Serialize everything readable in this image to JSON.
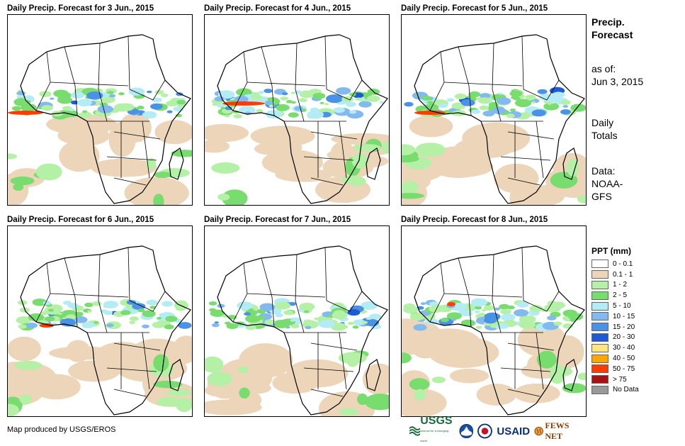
{
  "panels": [
    {
      "title": "Daily Precip. Forecast for 3 Jun., 2015"
    },
    {
      "title": "Daily Precip. Forecast for 4 Jun., 2015"
    },
    {
      "title": "Daily Precip. Forecast for 5 Jun., 2015"
    },
    {
      "title": "Daily Precip. Forecast for 6 Jun., 2015"
    },
    {
      "title": "Daily Precip. Forecast for 7 Jun., 2015"
    },
    {
      "title": "Daily Precip. Forecast for 8 Jun., 2015"
    }
  ],
  "side": {
    "title_line1": "Precip.",
    "title_line2": "Forecast",
    "asof_label": "as of:",
    "asof_date": "Jun 3, 2015",
    "totals_line1": "Daily",
    "totals_line2": "Totals",
    "data_line1": "Data:",
    "data_line2": "NOAA-",
    "data_line3": "GFS"
  },
  "legend": {
    "title": "PPT (mm)",
    "items": [
      {
        "label": "0 - 0.1",
        "color": "#ffffff"
      },
      {
        "label": "0.1 - 1",
        "color": "#ecd5b8"
      },
      {
        "label": "1 - 2",
        "color": "#b4f0a5"
      },
      {
        "label": "2 - 5",
        "color": "#78dc6e"
      },
      {
        "label": "5 - 10",
        "color": "#b4ecf5"
      },
      {
        "label": "10 - 15",
        "color": "#82b9ee"
      },
      {
        "label": "15 - 20",
        "color": "#4a92e6"
      },
      {
        "label": "20 - 30",
        "color": "#1e5ad2"
      },
      {
        "label": "30 - 40",
        "color": "#ffe682"
      },
      {
        "label": "40 - 50",
        "color": "#ffa500"
      },
      {
        "label": "50 - 75",
        "color": "#ff3c00"
      },
      {
        "label": "> 75",
        "color": "#a51414"
      },
      {
        "label": "No Data",
        "color": "#999999"
      }
    ]
  },
  "credit": "Map produced by USGS/EROS",
  "logos": {
    "usgs": "USGS",
    "usgs_tagline": "science for a changing world",
    "noaa_icon": "noaa-logo-icon",
    "usaid": "USAID",
    "fews": "FEWS NET"
  }
}
